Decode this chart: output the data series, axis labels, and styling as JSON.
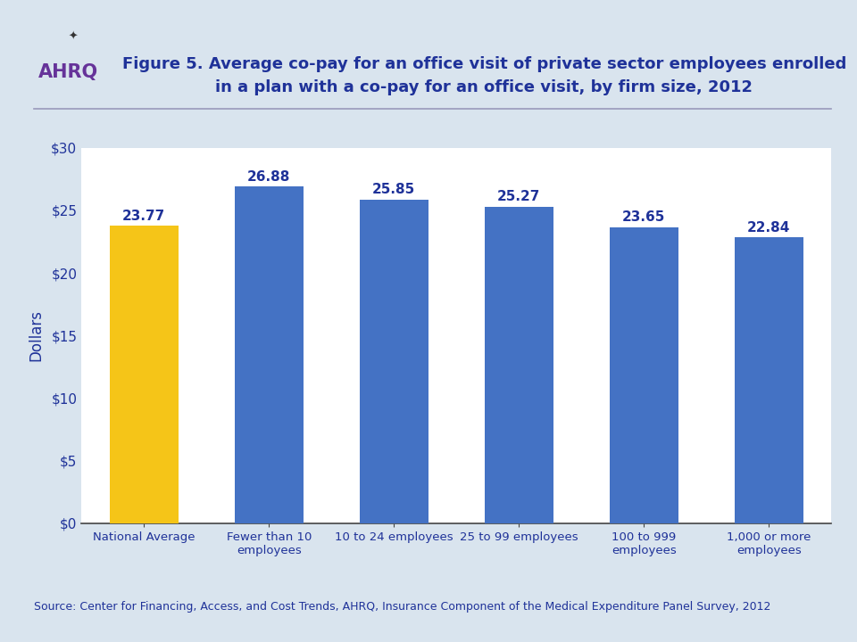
{
  "title_line1": "Figure 5. Average co-pay for an office visit of private sector employees enrolled",
  "title_line2": "in a plan with a co-pay for an office visit, by firm size, 2012",
  "categories": [
    "National Average",
    "Fewer than 10\nemployees",
    "10 to 24 employees",
    "25 to 99 employees",
    "100 to 999\nemployees",
    "1,000 or more\nemployees"
  ],
  "values": [
    23.77,
    26.88,
    25.85,
    25.27,
    23.65,
    22.84
  ],
  "bar_colors": [
    "#F5C518",
    "#4472C4",
    "#4472C4",
    "#4472C4",
    "#4472C4",
    "#4472C4"
  ],
  "ylabel": "Dollars",
  "ylim": [
    0,
    30
  ],
  "yticks": [
    0,
    5,
    10,
    15,
    20,
    25,
    30
  ],
  "ytick_labels": [
    "$0",
    "$5",
    "$10",
    "$15",
    "$20",
    "$25",
    "$30"
  ],
  "source_text": "Source: Center for Financing, Access, and Cost Trends, AHRQ, Insurance Component of the Medical Expenditure Panel Survey, 2012",
  "title_color": "#1F3299",
  "label_color": "#1F3299",
  "axis_label_color": "#1F3299",
  "tick_color": "#1F3299",
  "background_color": "#D9E4EE",
  "plot_background": "#FFFFFF",
  "separator_color": "#9999BB",
  "title_fontsize": 13,
  "label_fontsize": 11,
  "tick_fontsize": 11,
  "ylabel_fontsize": 12,
  "source_fontsize": 9,
  "bar_width": 0.55
}
